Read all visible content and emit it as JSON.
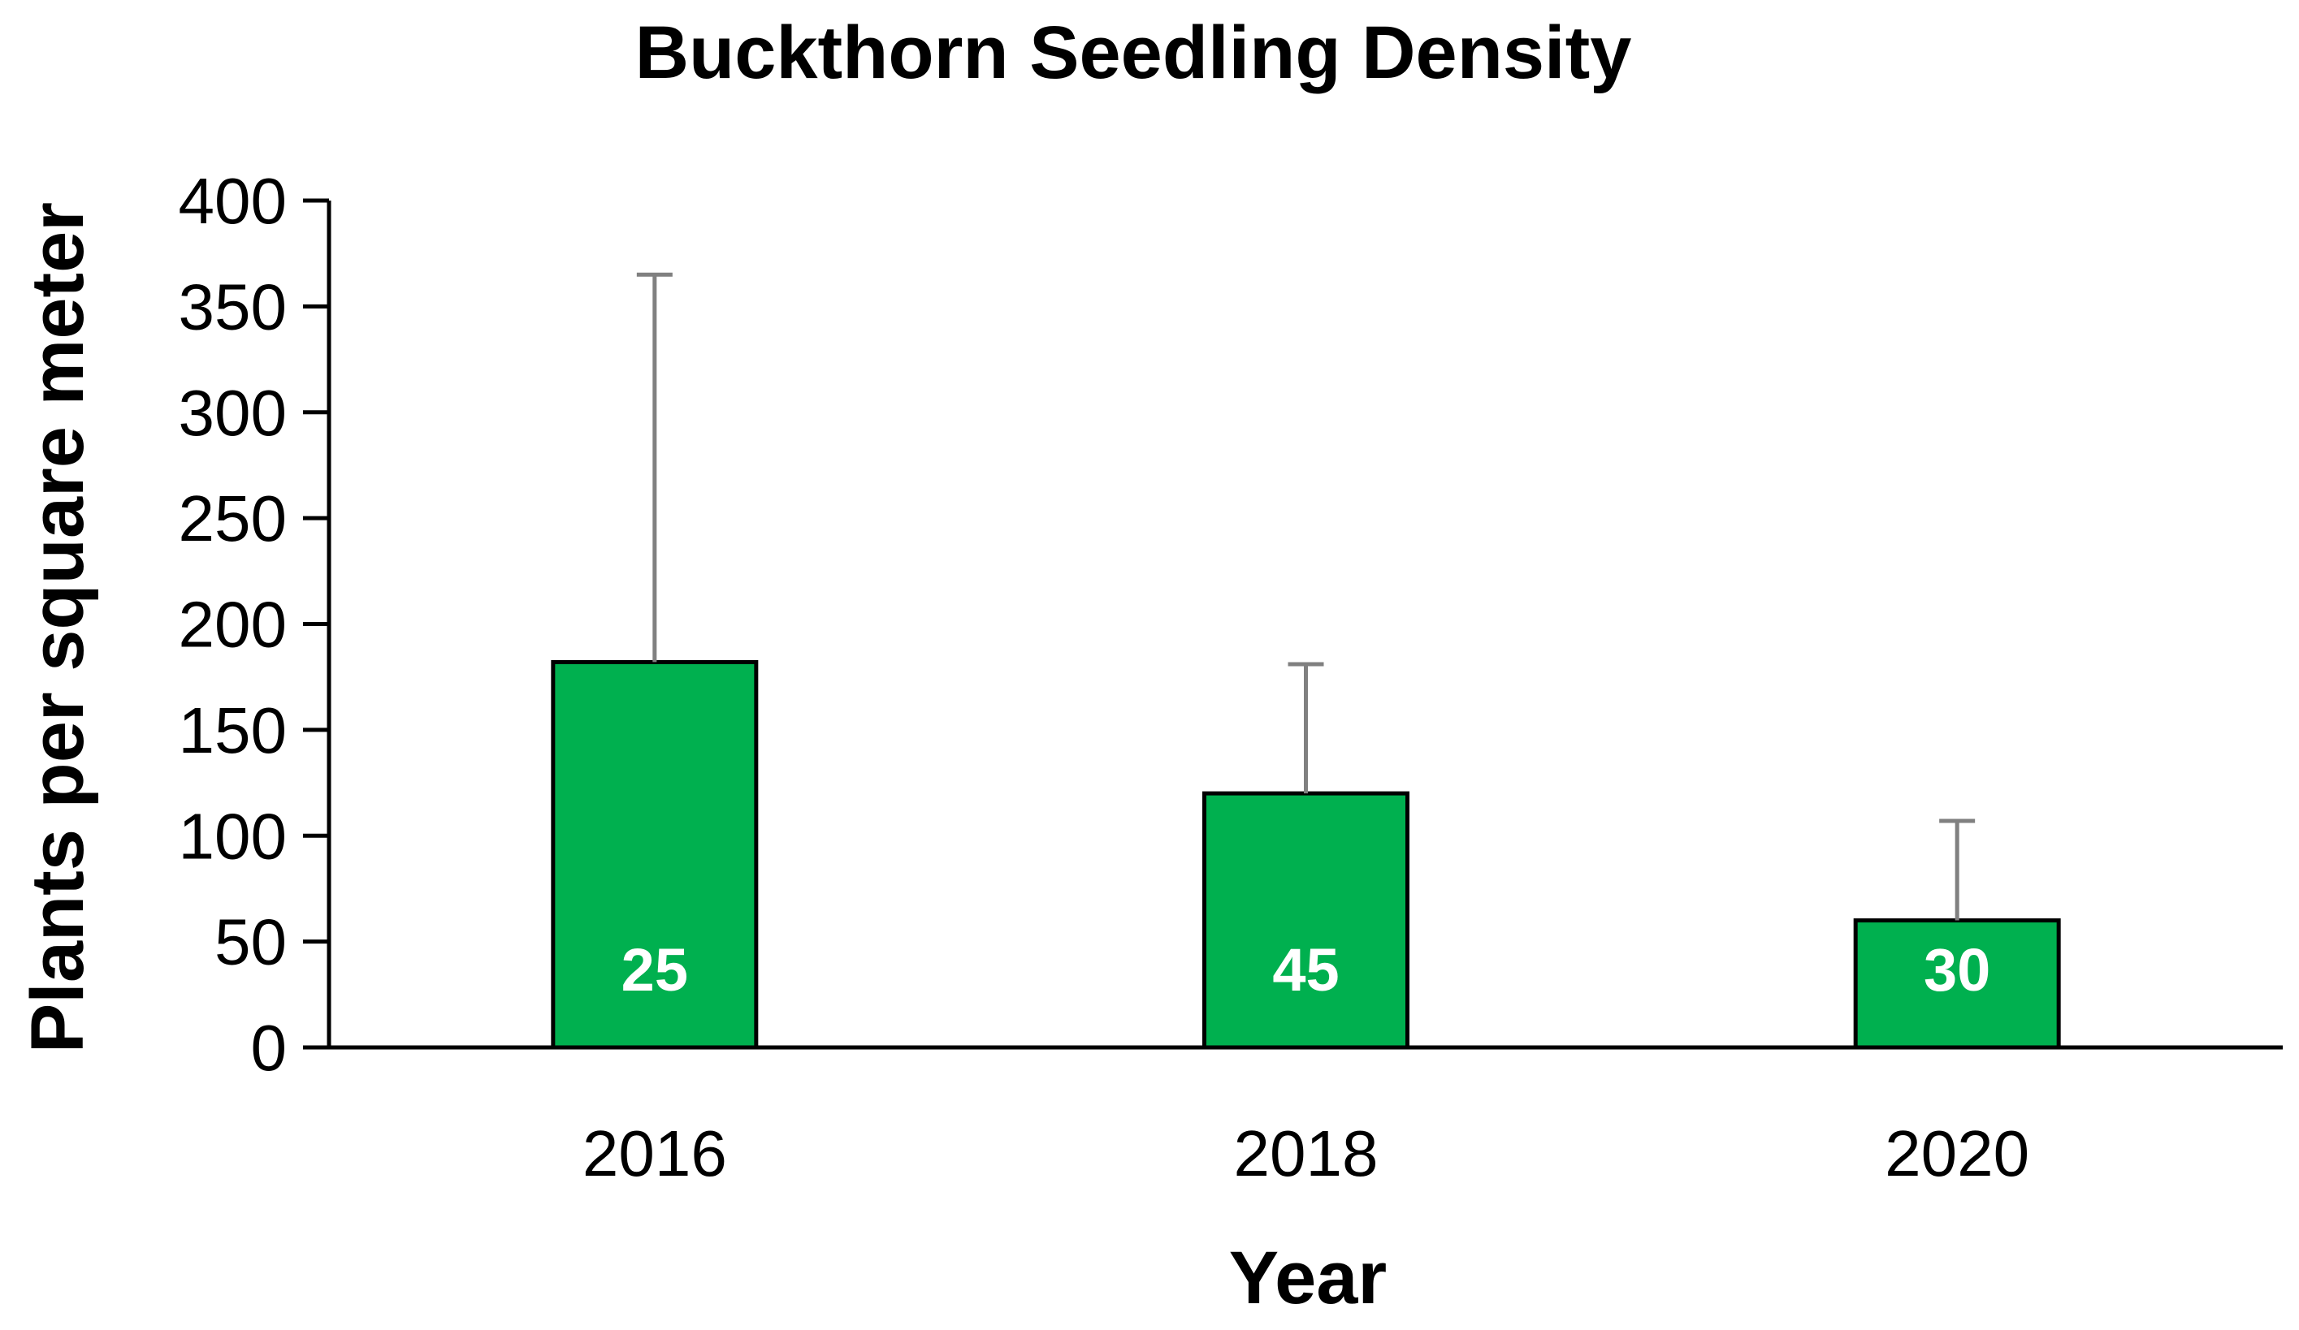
{
  "colors": {
    "bar_fill": "#00b04f",
    "bar_stroke": "#000000",
    "error_bar": "#808080",
    "axis": "#000000",
    "data_label": "#ffffff"
  },
  "chart_data": {
    "type": "bar",
    "title": "Buckthorn Seedling Density",
    "xlabel": "Year",
    "ylabel": "Plants per square meter",
    "ylim": [
      0,
      400
    ],
    "yticks": [
      0,
      50,
      100,
      150,
      200,
      250,
      300,
      350,
      400
    ],
    "categories": [
      "2016",
      "2018",
      "2020"
    ],
    "values": [
      182,
      120,
      60
    ],
    "error_upper": [
      365,
      181,
      107
    ],
    "data_labels": [
      "25",
      "45",
      "30"
    ],
    "grid": false,
    "legend": "none"
  }
}
